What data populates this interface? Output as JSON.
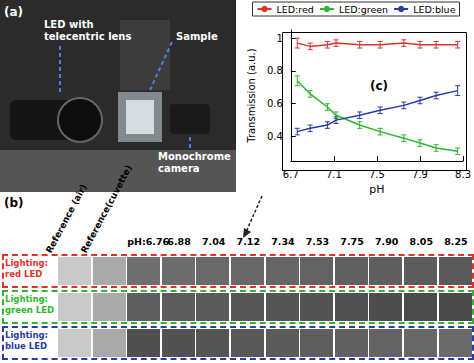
{
  "panel_a": {
    "label": "(a)",
    "annotations": [
      "LED with telecentric lens",
      "Sample",
      "Monochrome camera"
    ]
  },
  "panel_b": {
    "label": "(b)",
    "columns": [
      "Reference (air)",
      "Reference(cuvette)",
      "pH:6.76",
      "6.88",
      "7.04",
      "7.12",
      "7.34",
      "7.53",
      "7.75",
      "7.90",
      "8.05",
      "8.25"
    ],
    "rows": [
      {
        "label": "Lighting: red LED",
        "color": "#e0312b"
      },
      {
        "label": "Lighting: green LED",
        "color": "#2fb52f"
      },
      {
        "label": "Lighting: blue LED",
        "color": "#2a3aa8"
      }
    ]
  },
  "chart_data": {
    "type": "line",
    "label": "(c)",
    "xlabel": "pH",
    "ylabel": "Transmission (a.u.)",
    "xlim": [
      6.7,
      8.3
    ],
    "xticks": [
      6.7,
      7.1,
      7.5,
      7.9,
      8.3
    ],
    "ylim": [
      0.25,
      1.05
    ],
    "yticks": [
      0.4,
      0.6,
      0.8,
      1
    ],
    "legend": "top",
    "x": [
      6.76,
      6.88,
      7.04,
      7.12,
      7.34,
      7.53,
      7.75,
      7.9,
      8.05,
      8.25
    ],
    "series": [
      {
        "name": "LED:red",
        "color": "#e0312b",
        "values": [
          0.97,
          0.95,
          0.96,
          0.97,
          0.96,
          0.96,
          0.97,
          0.96,
          0.96,
          0.96
        ],
        "errors": [
          0.03,
          0.02,
          0.02,
          0.02,
          0.02,
          0.02,
          0.02,
          0.02,
          0.02,
          0.02
        ]
      },
      {
        "name": "LED:green",
        "color": "#2fb52f",
        "values": [
          0.74,
          0.66,
          0.58,
          0.53,
          0.47,
          0.43,
          0.39,
          0.36,
          0.33,
          0.31
        ],
        "errors": [
          0.03,
          0.02,
          0.02,
          0.02,
          0.02,
          0.02,
          0.02,
          0.02,
          0.02,
          0.02
        ]
      },
      {
        "name": "LED:blue",
        "color": "#2a3aa8",
        "values": [
          0.43,
          0.45,
          0.47,
          0.5,
          0.53,
          0.56,
          0.59,
          0.62,
          0.65,
          0.68
        ],
        "errors": [
          0.02,
          0.02,
          0.02,
          0.02,
          0.02,
          0.02,
          0.02,
          0.02,
          0.02,
          0.03
        ]
      }
    ]
  }
}
